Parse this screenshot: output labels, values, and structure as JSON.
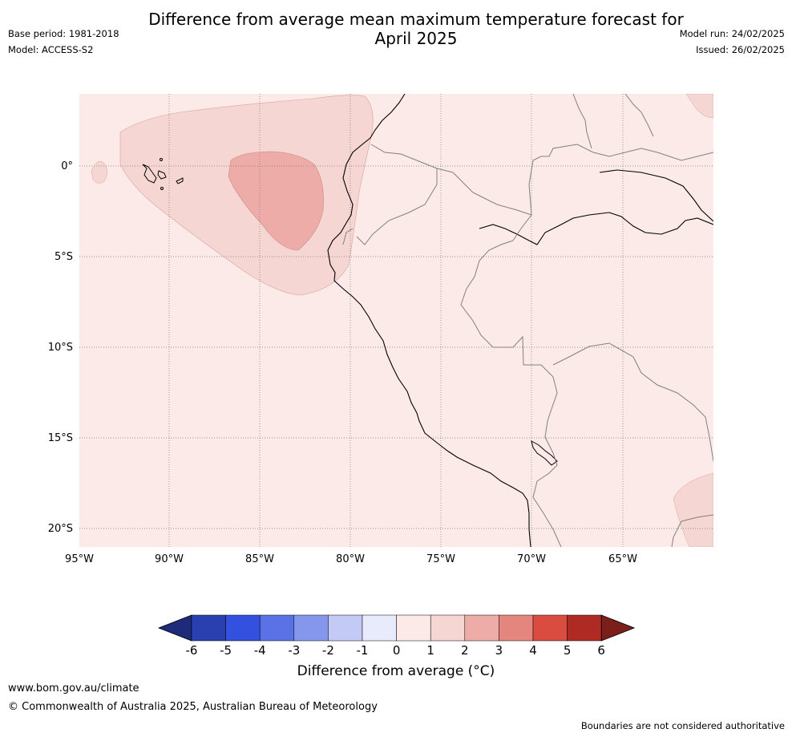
{
  "header": {
    "title_line1": "Difference from average mean maximum temperature forecast for",
    "title_line2": "April 2025",
    "base_period": "Base period: 1981-2018",
    "model": "Model: ACCESS-S2",
    "model_run": "Model run: 24/02/2025",
    "issued": "Issued: 26/02/2025"
  },
  "map": {
    "x_ticks": [
      "95°W",
      "90°W",
      "85°W",
      "80°W",
      "75°W",
      "70°W",
      "65°W"
    ],
    "y_ticks": [
      "0°",
      "5°S",
      "10°S",
      "15°S",
      "20°S"
    ],
    "background_color": "#fbeae8"
  },
  "colorbar": {
    "ticks": [
      "-6",
      "-5",
      "-4",
      "-3",
      "-2",
      "-1",
      "0",
      "1",
      "2",
      "3",
      "4",
      "5",
      "6"
    ],
    "colors": [
      "#1e2b7a",
      "#2a3fb0",
      "#3450de",
      "#5b72e6",
      "#8497ec",
      "#c2caf5",
      "#e8ebfb",
      "#fbeae8",
      "#f5d6d2",
      "#edaca7",
      "#e5867e",
      "#db4c40",
      "#ae2a22",
      "#7a1f1a"
    ],
    "label": "Difference from average (°C)"
  },
  "footer": {
    "url": "www.bom.gov.au/climate",
    "copyright": "© Commonwealth of Australia 2025, Australian Bureau of Meteorology",
    "note": "Boundaries are not considered authoritative"
  }
}
